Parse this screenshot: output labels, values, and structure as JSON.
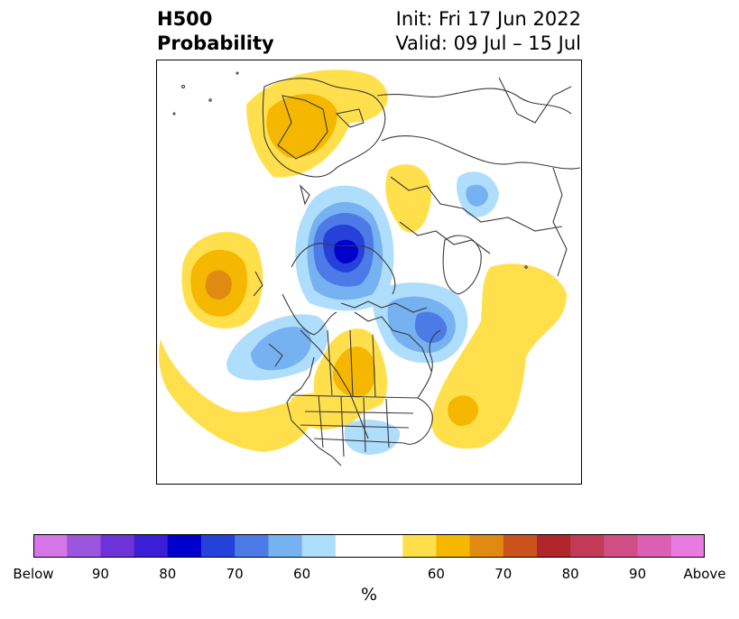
{
  "title": {
    "left_line1": "H500",
    "left_line2": "Probability",
    "right_line1": "Init: Fri 17 Jun 2022",
    "right_line2": "Valid: 09 Jul – 15 Jul"
  },
  "map": {
    "projection": "north-polar-stereographic",
    "land_outline_color": "#3a3a3a",
    "anomalies": [
      {
        "sign": "above",
        "region": "Europe / Scandinavia",
        "max_category": "65"
      },
      {
        "sign": "above",
        "region": "Central Asia / Urals",
        "max_category": "60"
      },
      {
        "sign": "below",
        "region": "Northwest Russia",
        "max_category": "55"
      },
      {
        "sign": "below",
        "region": "Central Arctic / Siberia",
        "max_category": "80"
      },
      {
        "sign": "above",
        "region": "North Pacific",
        "max_category": "70"
      },
      {
        "sign": "below",
        "region": "Gulf of Alaska",
        "max_category": "65"
      },
      {
        "sign": "above",
        "region": "Canadian Prairies",
        "max_category": "65"
      },
      {
        "sign": "below",
        "region": "Hudson Bay / Labrador",
        "max_category": "75"
      },
      {
        "sign": "above",
        "region": "North Atlantic",
        "max_category": "60"
      },
      {
        "sign": "above",
        "region": "Western United States",
        "max_category": "55"
      },
      {
        "sign": "below",
        "region": "Southeastern United States",
        "max_category": "55"
      }
    ]
  },
  "colorbar": {
    "unit_label": "%",
    "colors": [
      "#d675e8",
      "#9c56de",
      "#6d33d9",
      "#3a1fd6",
      "#0000cd",
      "#2541d9",
      "#4c7ae6",
      "#76b1f1",
      "#afddfc",
      "#ffffff",
      "#ffffff",
      "#ffe04c",
      "#f5b700",
      "#e08a12",
      "#c9531a",
      "#b1252b",
      "#c23a58",
      "#d14e84",
      "#db5fb3",
      "#e87be0"
    ],
    "ticks": [
      {
        "label": "Below",
        "frac": 0.0
      },
      {
        "label": "90",
        "frac": 0.1
      },
      {
        "label": "80",
        "frac": 0.2
      },
      {
        "label": "70",
        "frac": 0.3
      },
      {
        "label": "60",
        "frac": 0.4
      },
      {
        "label": "60",
        "frac": 0.6
      },
      {
        "label": "70",
        "frac": 0.7
      },
      {
        "label": "80",
        "frac": 0.8
      },
      {
        "label": "90",
        "frac": 0.9
      },
      {
        "label": "Above",
        "frac": 1.0
      }
    ]
  }
}
